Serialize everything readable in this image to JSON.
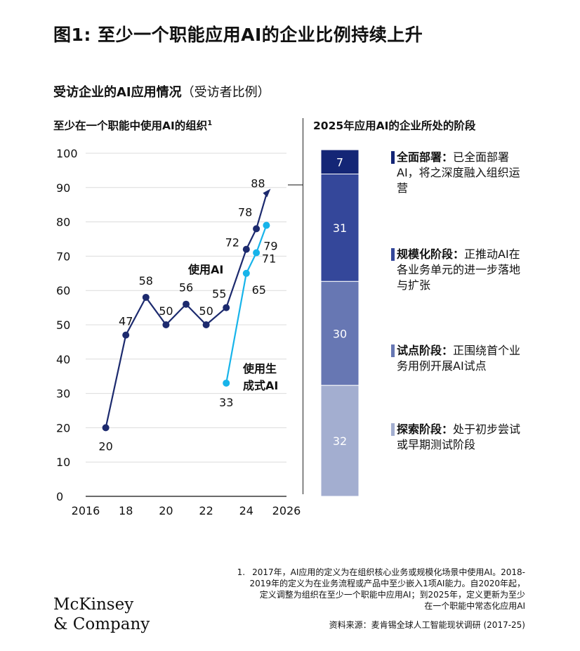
{
  "title": "图1: 至少一个职能应用AI的企业比例持续上升",
  "subtitle_bold": "受访企业的AI应用情况",
  "subtitle_normal": "（受访者比例）",
  "left_header": "至少在一个职能中使用AI的组织",
  "left_header_sup": "1",
  "right_header": "2025年应用AI的企业所处的阶段",
  "colors": {
    "ai": "#1c2a6e",
    "genai": "#17b4ea",
    "stage_full": "#142676",
    "stage_scale": "#34479a",
    "stage_pilot": "#6777b3",
    "stage_explore": "#a3aed0"
  },
  "chart_data": [
    {
      "type": "line",
      "xlim": [
        2016,
        2026
      ],
      "ylim": [
        0,
        100
      ],
      "x_ticks": [
        {
          "value": 2016,
          "label": "2016"
        },
        {
          "value": 2018,
          "label": "18"
        },
        {
          "value": 2020,
          "label": "20"
        },
        {
          "value": 2022,
          "label": "22"
        },
        {
          "value": 2024,
          "label": "24"
        },
        {
          "value": 2026,
          "label": "2026"
        }
      ],
      "y_ticks": [
        0,
        10,
        20,
        30,
        40,
        50,
        60,
        70,
        80,
        90,
        100
      ],
      "grid": true,
      "series": [
        {
          "name": "使用AI",
          "points": [
            {
              "x": 2017,
              "y": 20
            },
            {
              "x": 2018,
              "y": 47
            },
            {
              "x": 2019,
              "y": 58
            },
            {
              "x": 2020,
              "y": 50
            },
            {
              "x": 2021,
              "y": 56
            },
            {
              "x": 2022,
              "y": 50
            },
            {
              "x": 2023,
              "y": 55
            },
            {
              "x": 2024,
              "y": 72
            },
            {
              "x": 2024.5,
              "y": 78
            },
            {
              "x": 2025,
              "y": 88
            }
          ]
        },
        {
          "name": "使用生成式AI",
          "points": [
            {
              "x": 2023,
              "y": 33
            },
            {
              "x": 2024,
              "y": 65
            },
            {
              "x": 2024.5,
              "y": 71
            },
            {
              "x": 2025,
              "y": 79
            }
          ]
        }
      ],
      "series_labels": {
        "ai": "使用AI",
        "genai_line1": "使用生",
        "genai_line2": "成式AI"
      }
    },
    {
      "type": "bar",
      "stacked": true,
      "segments": [
        {
          "value": 7,
          "label": "7",
          "color_key": "stage_full"
        },
        {
          "value": 31,
          "label": "31",
          "color_key": "stage_scale"
        },
        {
          "value": 30,
          "label": "30",
          "color_key": "stage_pilot"
        },
        {
          "value": 32,
          "label": "32",
          "color_key": "stage_explore"
        }
      ]
    }
  ],
  "legend": [
    {
      "title": "全面部署",
      "text": "已全面部署AI，将之深度融入组织运营"
    },
    {
      "title": "规模化阶段",
      "text": "正推动AI在各业务单元的进一步落地与扩张"
    },
    {
      "title": "试点阶段",
      "text": "正围绕首个业务用例开展AI试点"
    },
    {
      "title": "探索阶段",
      "text": "处于初步尝试或早期测试阶段"
    }
  ],
  "legend_sep": "：",
  "footnote_num": "1.",
  "footnote_lines": [
    "2017年，AI应用的定义为在组织核心业务或规模化场景中使用AI。2018-",
    "2019年的定义为在业务流程或产品中至少嵌入1项AI能力。自2020年起，",
    "定义调整为组织在至少一个职能中应用AI；到2025年，定义更新为至少",
    "在一个职能中常态化应用AI"
  ],
  "source": "资料来源：麦肯锡全球人工智能现状调研 (2017-25)",
  "logo_line1": "McKinsey",
  "logo_line2": "& Company"
}
